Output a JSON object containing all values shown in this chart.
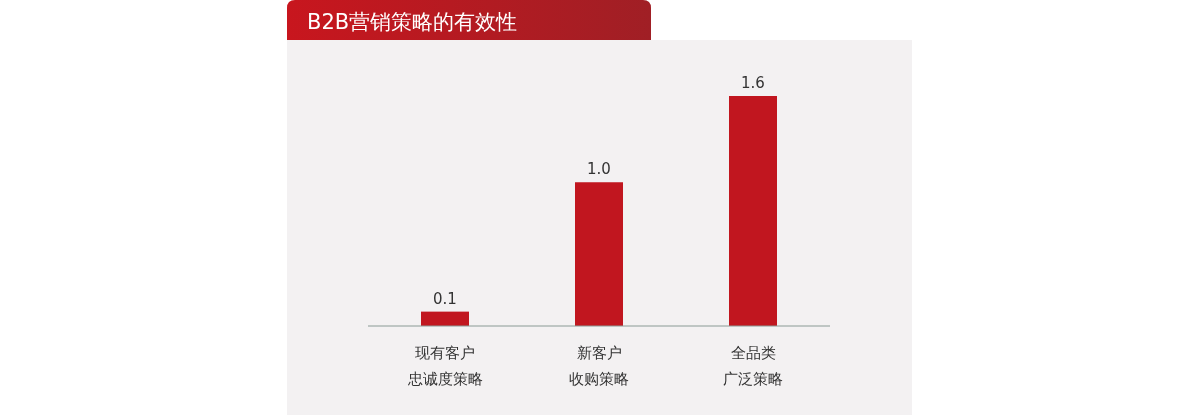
{
  "chart_data": {
    "type": "bar",
    "title": "B2B营销策略的有效性",
    "categories": [
      "现有客户忠诚度策略",
      "新客户收购策略",
      "全品类广泛策略"
    ],
    "values": [
      0.1,
      1.0,
      1.6
    ],
    "value_labels": [
      "0.1",
      "1.0",
      "1.6"
    ],
    "color": "#c1161f"
  }
}
